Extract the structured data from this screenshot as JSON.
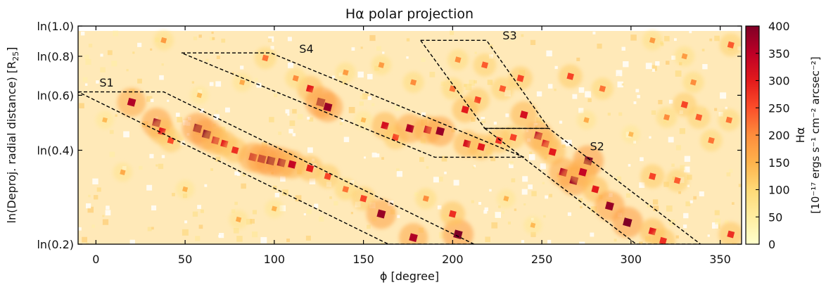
{
  "chart_data": {
    "type": "heatmap",
    "title": "Hα polar projection",
    "xlabel": "ϕ [degree]",
    "ylabel": "ln(Deproj. radial distance) [R",
    "ylabel_sub": "25",
    "ylabel_end": "]",
    "xlim": [
      -10,
      362
    ],
    "ylim_ln": [
      0.2,
      1.0
    ],
    "y_scale": "log",
    "x_ticks": [
      0,
      50,
      100,
      150,
      200,
      250,
      300,
      350
    ],
    "x_tick_labels": [
      "0",
      "50",
      "100",
      "150",
      "200",
      "250",
      "300",
      "350"
    ],
    "y_ticks": [
      0.2,
      0.4,
      0.6,
      0.8,
      1.0
    ],
    "y_tick_labels": [
      "ln(0.2)",
      "ln(0.4)",
      "ln(0.6)",
      "ln(0.8)",
      "ln(1.0)"
    ],
    "colorbar": {
      "min": 0,
      "max": 400,
      "ticks": [
        0,
        50,
        100,
        150,
        200,
        250,
        300,
        350,
        400
      ],
      "tick_labels": [
        "0",
        "50",
        "100",
        "150",
        "200",
        "250",
        "300",
        "350",
        "400"
      ],
      "label_line1": "Hα",
      "label_line2": "[10⁻¹⁷ ergs s⁻¹ cm⁻² arcsec⁻²]",
      "colormap": [
        "#ffffcc",
        "#ffeda0",
        "#fed976",
        "#feb24c",
        "#fd8d3c",
        "#fc4e2a",
        "#e31a1c",
        "#bd0026",
        "#800026"
      ]
    },
    "background_color": "#ffe9b8",
    "regions": [
      {
        "name": "S1",
        "points": [
          [
            -10,
            0.615
          ],
          [
            38,
            0.615
          ],
          [
            212,
            0.2
          ],
          [
            164,
            0.2
          ]
        ],
        "label_at": [
          2,
          0.64
        ]
      },
      {
        "name": "S2",
        "points": [
          [
            218,
            0.47
          ],
          [
            254,
            0.47
          ],
          [
            339,
            0.2
          ],
          [
            303,
            0.2
          ]
        ],
        "label_at": [
          277,
          0.4
        ]
      },
      {
        "name": "S3",
        "points": [
          [
            182,
            0.9
          ],
          [
            219,
            0.9
          ],
          [
            254,
            0.47
          ],
          [
            218,
            0.47
          ]
        ],
        "label_at": [
          228,
          0.905
        ]
      },
      {
        "name": "S4",
        "points": [
          [
            48,
            0.82
          ],
          [
            98,
            0.82
          ],
          [
            240,
            0.38
          ],
          [
            190,
            0.38
          ]
        ],
        "label_at": [
          114,
          0.82
        ]
      }
    ],
    "hotspots": [
      {
        "x": 20,
        "y": 0.57,
        "v": 360
      },
      {
        "x": 34,
        "y": 0.49,
        "v": 380
      },
      {
        "x": 37,
        "y": 0.46,
        "v": 300
      },
      {
        "x": 42,
        "y": 0.43,
        "v": 250
      },
      {
        "x": 57,
        "y": 0.47,
        "v": 400
      },
      {
        "x": 62,
        "y": 0.45,
        "v": 400
      },
      {
        "x": 67,
        "y": 0.43,
        "v": 330
      },
      {
        "x": 72,
        "y": 0.42,
        "v": 300
      },
      {
        "x": 78,
        "y": 0.4,
        "v": 280
      },
      {
        "x": 88,
        "y": 0.38,
        "v": 360
      },
      {
        "x": 93,
        "y": 0.375,
        "v": 380
      },
      {
        "x": 98,
        "y": 0.37,
        "v": 400
      },
      {
        "x": 104,
        "y": 0.365,
        "v": 380
      },
      {
        "x": 110,
        "y": 0.36,
        "v": 340
      },
      {
        "x": 120,
        "y": 0.35,
        "v": 300
      },
      {
        "x": 130,
        "y": 0.33,
        "v": 260
      },
      {
        "x": 140,
        "y": 0.3,
        "v": 220
      },
      {
        "x": 150,
        "y": 0.28,
        "v": 260
      },
      {
        "x": 160,
        "y": 0.25,
        "v": 380
      },
      {
        "x": 178,
        "y": 0.21,
        "v": 360
      },
      {
        "x": 203,
        "y": 0.215,
        "v": 400
      },
      {
        "x": 200,
        "y": 0.25,
        "v": 280
      },
      {
        "x": 185,
        "y": 0.28,
        "v": 200
      },
      {
        "x": 120,
        "y": 0.63,
        "v": 300
      },
      {
        "x": 126,
        "y": 0.57,
        "v": 400
      },
      {
        "x": 130,
        "y": 0.55,
        "v": 380
      },
      {
        "x": 112,
        "y": 0.68,
        "v": 200
      },
      {
        "x": 95,
        "y": 0.79,
        "v": 220
      },
      {
        "x": 162,
        "y": 0.48,
        "v": 320
      },
      {
        "x": 168,
        "y": 0.44,
        "v": 260
      },
      {
        "x": 176,
        "y": 0.47,
        "v": 360
      },
      {
        "x": 186,
        "y": 0.465,
        "v": 340
      },
      {
        "x": 193,
        "y": 0.46,
        "v": 380
      },
      {
        "x": 208,
        "y": 0.42,
        "v": 320
      },
      {
        "x": 216,
        "y": 0.41,
        "v": 300
      },
      {
        "x": 226,
        "y": 0.43,
        "v": 280
      },
      {
        "x": 240,
        "y": 0.52,
        "v": 320
      },
      {
        "x": 238,
        "y": 0.68,
        "v": 260
      },
      {
        "x": 228,
        "y": 0.63,
        "v": 240
      },
      {
        "x": 214,
        "y": 0.58,
        "v": 260
      },
      {
        "x": 207,
        "y": 0.54,
        "v": 300
      },
      {
        "x": 203,
        "y": 0.78,
        "v": 200
      },
      {
        "x": 218,
        "y": 0.75,
        "v": 240
      },
      {
        "x": 200,
        "y": 0.63,
        "v": 220
      },
      {
        "x": 234,
        "y": 0.44,
        "v": 260
      },
      {
        "x": 248,
        "y": 0.445,
        "v": 360
      },
      {
        "x": 252,
        "y": 0.42,
        "v": 320
      },
      {
        "x": 256,
        "y": 0.395,
        "v": 300
      },
      {
        "x": 262,
        "y": 0.34,
        "v": 360
      },
      {
        "x": 268,
        "y": 0.32,
        "v": 380
      },
      {
        "x": 276,
        "y": 0.37,
        "v": 400
      },
      {
        "x": 273,
        "y": 0.34,
        "v": 340
      },
      {
        "x": 280,
        "y": 0.3,
        "v": 300
      },
      {
        "x": 288,
        "y": 0.265,
        "v": 380
      },
      {
        "x": 298,
        "y": 0.235,
        "v": 400
      },
      {
        "x": 312,
        "y": 0.22,
        "v": 300
      },
      {
        "x": 318,
        "y": 0.205,
        "v": 280
      },
      {
        "x": 312,
        "y": 0.33,
        "v": 260
      },
      {
        "x": 326,
        "y": 0.32,
        "v": 240
      },
      {
        "x": 345,
        "y": 0.43,
        "v": 220
      },
      {
        "x": 338,
        "y": 0.51,
        "v": 240
      },
      {
        "x": 330,
        "y": 0.56,
        "v": 260
      },
      {
        "x": 320,
        "y": 0.51,
        "v": 200
      },
      {
        "x": 356,
        "y": 0.215,
        "v": 280
      },
      {
        "x": 355,
        "y": 0.5,
        "v": 220
      },
      {
        "x": 266,
        "y": 0.69,
        "v": 260
      },
      {
        "x": 284,
        "y": 0.63,
        "v": 220
      },
      {
        "x": 335,
        "y": 0.66,
        "v": 200
      },
      {
        "x": 356,
        "y": 0.87,
        "v": 240
      },
      {
        "x": 330,
        "y": 0.8,
        "v": 180
      },
      {
        "x": 312,
        "y": 0.9,
        "v": 180
      },
      {
        "x": 15,
        "y": 0.34,
        "v": 160
      },
      {
        "x": 38,
        "y": 0.9,
        "v": 180
      },
      {
        "x": 160,
        "y": 0.75,
        "v": 180
      },
      {
        "x": 178,
        "y": 0.66,
        "v": 200
      },
      {
        "x": 140,
        "y": 0.71,
        "v": 180
      },
      {
        "x": 82,
        "y": 0.66,
        "v": 160
      },
      {
        "x": 5,
        "y": 0.5,
        "v": 140
      },
      {
        "x": 50,
        "y": 0.3,
        "v": 150
      },
      {
        "x": 80,
        "y": 0.24,
        "v": 160
      },
      {
        "x": 100,
        "y": 0.26,
        "v": 150
      },
      {
        "x": 230,
        "y": 0.28,
        "v": 150
      },
      {
        "x": 245,
        "y": 0.23,
        "v": 140
      },
      {
        "x": 58,
        "y": 0.6,
        "v": 140
      },
      {
        "x": 275,
        "y": 0.5,
        "v": 160
      },
      {
        "x": 300,
        "y": 0.45,
        "v": 140
      },
      {
        "x": 150,
        "y": 0.5,
        "v": 140
      }
    ]
  }
}
